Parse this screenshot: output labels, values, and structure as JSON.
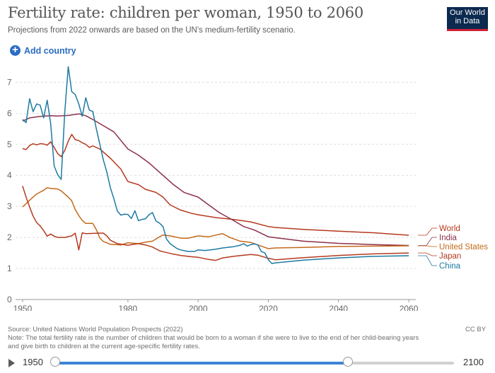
{
  "header": {
    "title": "Fertility rate: children per woman, 1950 to 2060",
    "subtitle": "Projections from 2022 onwards are based on the UN's medium-fertility scenario.",
    "logo_line1": "Our World",
    "logo_line2": "in Data",
    "add_country_label": "Add country",
    "add_icon_glyph": "+"
  },
  "footer": {
    "source": "Source: United Nations World Population Prospects (2022)",
    "note_line1": "Note: The total fertility rate is the number of children that would be born to a woman if she were to live to the end of her child-bearing years",
    "note_line2": "and give birth to children at the current age-specific fertility rates.",
    "license": "CC BY"
  },
  "timeline": {
    "start_label": "1950",
    "end_label": "2100",
    "min": 1950,
    "max": 2100,
    "range_start": 1950,
    "range_end": 2060
  },
  "chart_data": {
    "type": "line",
    "title": "Fertility rate: children per woman, 1950 to 2060",
    "xlim": [
      1948,
      2062
    ],
    "ylim": [
      0,
      7.6
    ],
    "x_ticks": [
      1950,
      1980,
      2000,
      2020,
      2040,
      2060
    ],
    "y_ticks": [
      0,
      1,
      2,
      3,
      4,
      5,
      6,
      7
    ],
    "grid": true,
    "legend": "right-end",
    "series": [
      {
        "name": "World",
        "color": "#b5391e",
        "points": [
          [
            1950,
            4.86
          ],
          [
            1951,
            4.83
          ],
          [
            1952,
            4.96
          ],
          [
            1953,
            5.02
          ],
          [
            1954,
            4.98
          ],
          [
            1955,
            5.02
          ],
          [
            1956,
            5.01
          ],
          [
            1957,
            4.97
          ],
          [
            1958,
            5.08
          ],
          [
            1959,
            4.9
          ],
          [
            1960,
            4.7
          ],
          [
            1961,
            4.6
          ],
          [
            1962,
            4.8
          ],
          [
            1963,
            5.1
          ],
          [
            1964,
            5.32
          ],
          [
            1965,
            5.15
          ],
          [
            1966,
            5.12
          ],
          [
            1967,
            5.05
          ],
          [
            1968,
            5.0
          ],
          [
            1969,
            4.9
          ],
          [
            1970,
            4.95
          ],
          [
            1972,
            4.85
          ],
          [
            1975,
            4.55
          ],
          [
            1978,
            4.2
          ],
          [
            1980,
            3.8
          ],
          [
            1983,
            3.7
          ],
          [
            1985,
            3.55
          ],
          [
            1988,
            3.45
          ],
          [
            1990,
            3.3
          ],
          [
            1992,
            3.05
          ],
          [
            1995,
            2.88
          ],
          [
            1998,
            2.78
          ],
          [
            2000,
            2.73
          ],
          [
            2005,
            2.64
          ],
          [
            2010,
            2.58
          ],
          [
            2015,
            2.5
          ],
          [
            2020,
            2.35
          ],
          [
            2022,
            2.32
          ],
          [
            2030,
            2.26
          ],
          [
            2040,
            2.2
          ],
          [
            2050,
            2.15
          ],
          [
            2060,
            2.07
          ]
        ]
      },
      {
        "name": "India",
        "color": "#8c3049",
        "points": [
          [
            1950,
            5.75
          ],
          [
            1952,
            5.85
          ],
          [
            1955,
            5.9
          ],
          [
            1958,
            5.92
          ],
          [
            1960,
            5.91
          ],
          [
            1963,
            5.93
          ],
          [
            1966,
            5.98
          ],
          [
            1968,
            5.92
          ],
          [
            1970,
            5.8
          ],
          [
            1973,
            5.6
          ],
          [
            1976,
            5.4
          ],
          [
            1980,
            4.85
          ],
          [
            1983,
            4.65
          ],
          [
            1986,
            4.4
          ],
          [
            1990,
            4.0
          ],
          [
            1993,
            3.7
          ],
          [
            1996,
            3.45
          ],
          [
            2000,
            3.3
          ],
          [
            2003,
            3.05
          ],
          [
            2006,
            2.8
          ],
          [
            2010,
            2.55
          ],
          [
            2013,
            2.35
          ],
          [
            2016,
            2.24
          ],
          [
            2020,
            2.02
          ],
          [
            2022,
            1.99
          ],
          [
            2030,
            1.88
          ],
          [
            2040,
            1.81
          ],
          [
            2050,
            1.77
          ],
          [
            2060,
            1.74
          ]
        ]
      },
      {
        "name": "United States",
        "color": "#c4691a",
        "points": [
          [
            1950,
            2.98
          ],
          [
            1952,
            3.2
          ],
          [
            1954,
            3.4
          ],
          [
            1956,
            3.52
          ],
          [
            1957,
            3.6
          ],
          [
            1958,
            3.58
          ],
          [
            1960,
            3.56
          ],
          [
            1961,
            3.5
          ],
          [
            1963,
            3.3
          ],
          [
            1964,
            3.18
          ],
          [
            1965,
            2.9
          ],
          [
            1966,
            2.7
          ],
          [
            1967,
            2.55
          ],
          [
            1968,
            2.45
          ],
          [
            1970,
            2.45
          ],
          [
            1971,
            2.25
          ],
          [
            1972,
            1.98
          ],
          [
            1973,
            1.87
          ],
          [
            1975,
            1.78
          ],
          [
            1978,
            1.76
          ],
          [
            1980,
            1.83
          ],
          [
            1983,
            1.8
          ],
          [
            1985,
            1.85
          ],
          [
            1987,
            1.88
          ],
          [
            1989,
            2.02
          ],
          [
            1990,
            2.08
          ],
          [
            1992,
            2.05
          ],
          [
            1995,
            1.98
          ],
          [
            1997,
            1.97
          ],
          [
            2000,
            2.05
          ],
          [
            2003,
            2.02
          ],
          [
            2006,
            2.1
          ],
          [
            2007,
            2.12
          ],
          [
            2009,
            2.0
          ],
          [
            2012,
            1.88
          ],
          [
            2015,
            1.84
          ],
          [
            2017,
            1.76
          ],
          [
            2020,
            1.64
          ],
          [
            2022,
            1.66
          ],
          [
            2030,
            1.68
          ],
          [
            2040,
            1.71
          ],
          [
            2050,
            1.72
          ],
          [
            2060,
            1.73
          ]
        ]
      },
      {
        "name": "Japan",
        "color": "#b5391e",
        "points": [
          [
            1950,
            3.66
          ],
          [
            1951,
            3.3
          ],
          [
            1952,
            2.98
          ],
          [
            1953,
            2.69
          ],
          [
            1954,
            2.48
          ],
          [
            1955,
            2.37
          ],
          [
            1956,
            2.22
          ],
          [
            1957,
            2.04
          ],
          [
            1958,
            2.11
          ],
          [
            1959,
            2.04
          ],
          [
            1960,
            2.0
          ],
          [
            1962,
            2.0
          ],
          [
            1964,
            2.05
          ],
          [
            1965,
            2.14
          ],
          [
            1966,
            1.6
          ],
          [
            1967,
            2.15
          ],
          [
            1968,
            2.12
          ],
          [
            1970,
            2.13
          ],
          [
            1972,
            2.14
          ],
          [
            1973,
            2.14
          ],
          [
            1974,
            2.05
          ],
          [
            1975,
            1.91
          ],
          [
            1977,
            1.8
          ],
          [
            1980,
            1.75
          ],
          [
            1983,
            1.8
          ],
          [
            1985,
            1.76
          ],
          [
            1987,
            1.69
          ],
          [
            1989,
            1.57
          ],
          [
            1990,
            1.54
          ],
          [
            1993,
            1.46
          ],
          [
            1995,
            1.42
          ],
          [
            1998,
            1.38
          ],
          [
            2000,
            1.36
          ],
          [
            2003,
            1.29
          ],
          [
            2005,
            1.26
          ],
          [
            2007,
            1.34
          ],
          [
            2010,
            1.39
          ],
          [
            2013,
            1.43
          ],
          [
            2015,
            1.45
          ],
          [
            2017,
            1.43
          ],
          [
            2019,
            1.36
          ],
          [
            2020,
            1.33
          ],
          [
            2022,
            1.28
          ],
          [
            2030,
            1.35
          ],
          [
            2040,
            1.42
          ],
          [
            2050,
            1.47
          ],
          [
            2060,
            1.5
          ]
        ]
      },
      {
        "name": "China",
        "color": "#1d7aa3",
        "points": [
          [
            1950,
            5.8
          ],
          [
            1951,
            5.7
          ],
          [
            1952,
            6.47
          ],
          [
            1953,
            6.05
          ],
          [
            1954,
            6.3
          ],
          [
            1955,
            6.26
          ],
          [
            1956,
            5.85
          ],
          [
            1957,
            6.42
          ],
          [
            1958,
            5.68
          ],
          [
            1959,
            4.3
          ],
          [
            1960,
            4.02
          ],
          [
            1961,
            3.87
          ],
          [
            1962,
            6.0
          ],
          [
            1963,
            7.5
          ],
          [
            1964,
            6.7
          ],
          [
            1965,
            6.6
          ],
          [
            1966,
            6.3
          ],
          [
            1967,
            5.9
          ],
          [
            1968,
            6.5
          ],
          [
            1969,
            6.1
          ],
          [
            1970,
            6.06
          ],
          [
            1971,
            5.5
          ],
          [
            1972,
            5.0
          ],
          [
            1973,
            4.5
          ],
          [
            1974,
            4.1
          ],
          [
            1975,
            3.6
          ],
          [
            1976,
            3.25
          ],
          [
            1977,
            2.85
          ],
          [
            1978,
            2.72
          ],
          [
            1979,
            2.75
          ],
          [
            1980,
            2.74
          ],
          [
            1981,
            2.61
          ],
          [
            1982,
            2.86
          ],
          [
            1983,
            2.54
          ],
          [
            1984,
            2.58
          ],
          [
            1985,
            2.6
          ],
          [
            1986,
            2.73
          ],
          [
            1987,
            2.8
          ],
          [
            1988,
            2.53
          ],
          [
            1989,
            2.46
          ],
          [
            1990,
            2.35
          ],
          [
            1991,
            1.95
          ],
          [
            1992,
            1.8
          ],
          [
            1993,
            1.72
          ],
          [
            1994,
            1.64
          ],
          [
            1995,
            1.6
          ],
          [
            1997,
            1.55
          ],
          [
            1999,
            1.55
          ],
          [
            2000,
            1.6
          ],
          [
            2002,
            1.58
          ],
          [
            2005,
            1.62
          ],
          [
            2007,
            1.66
          ],
          [
            2010,
            1.7
          ],
          [
            2012,
            1.75
          ],
          [
            2013,
            1.8
          ],
          [
            2014,
            1.72
          ],
          [
            2015,
            1.77
          ],
          [
            2016,
            1.79
          ],
          [
            2017,
            1.76
          ],
          [
            2018,
            1.55
          ],
          [
            2019,
            1.5
          ],
          [
            2020,
            1.28
          ],
          [
            2021,
            1.16
          ],
          [
            2022,
            1.18
          ],
          [
            2030,
            1.27
          ],
          [
            2040,
            1.34
          ],
          [
            2050,
            1.39
          ],
          [
            2060,
            1.41
          ]
        ]
      }
    ]
  }
}
